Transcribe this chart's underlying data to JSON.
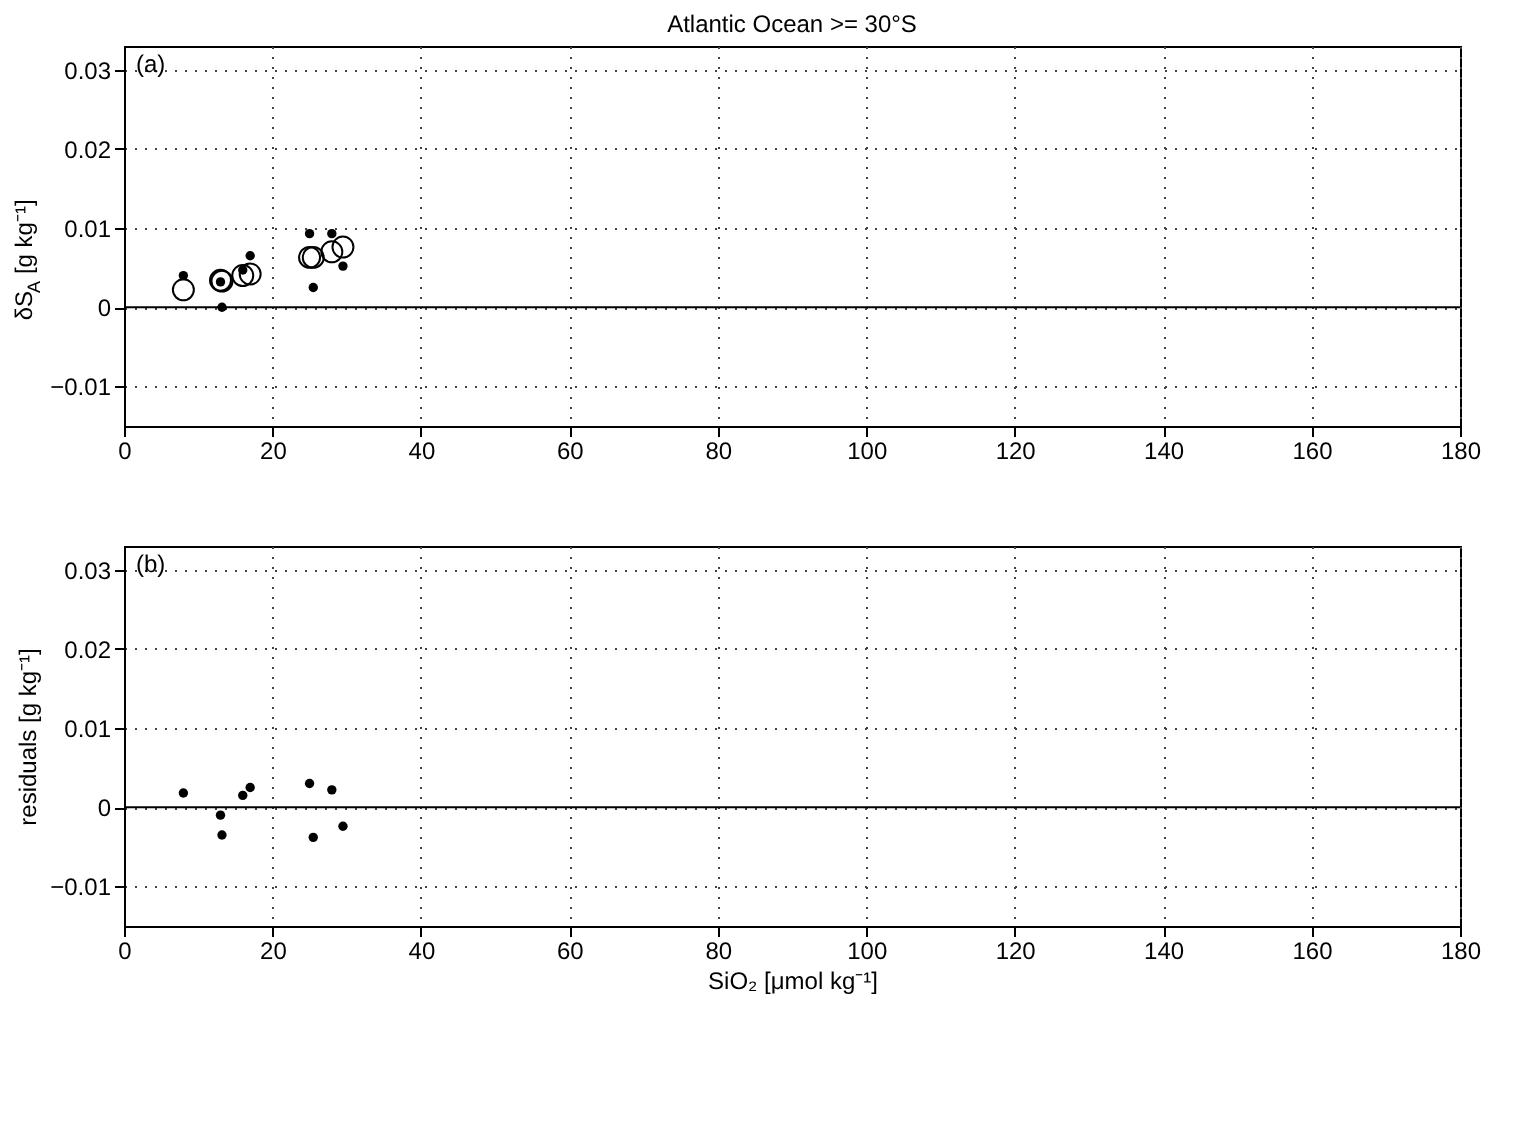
{
  "chart_data": [
    {
      "type": "scatter",
      "title": "Atlantic Ocean >= 30°S",
      "ylabel": "δS$_{A}$ [g kg⁻¹]",
      "annotations": [
        "(a)"
      ],
      "xlim": [
        0,
        180
      ],
      "xticks": [
        0,
        20,
        40,
        60,
        80,
        100,
        120,
        140,
        160,
        180
      ],
      "ylim": [
        -0.015,
        0.033
      ],
      "yticks": [
        -0.01,
        0,
        0.01,
        0.02,
        0.03
      ],
      "grid": true,
      "marker": "circle",
      "ref_lines": [
        {
          "axis": "y",
          "value": 0,
          "color": "#000000"
        }
      ],
      "series": [
        {
          "color": "#000000",
          "x": [
            8,
            13,
            13.2,
            16,
            17,
            25,
            25.5,
            28,
            29.5
          ],
          "values": [
            0.004,
            0.0032,
            0.0,
            0.0047,
            0.0065,
            0.0093,
            0.0025,
            0.0093,
            0.0052
          ]
        },
        {
          "color": "#000000",
          "x": [
            8,
            13,
            13.2,
            16,
            17,
            25,
            25.5,
            28,
            29.5
          ],
          "values": [
            0.0022,
            0.0034,
            0.0033,
            0.004,
            0.0042,
            0.0063,
            0.0063,
            0.007,
            0.0076
          ]
        }
      ]
    },
    {
      "type": "scatter",
      "xlabel": "SiO₂ [μmol kg⁻¹]",
      "ylabel": "residuals [g kg⁻¹]",
      "annotations": [
        "(b)"
      ],
      "xlim": [
        0,
        180
      ],
      "xticks": [
        0,
        20,
        40,
        60,
        80,
        100,
        120,
        140,
        160,
        180
      ],
      "ylim": [
        -0.015,
        0.033
      ],
      "yticks": [
        -0.01,
        0,
        0.01,
        0.02,
        0.03
      ],
      "grid": true,
      "marker": "circle",
      "ref_lines": [
        {
          "axis": "y",
          "value": 0,
          "color": "#000000"
        }
      ],
      "series": [
        {
          "color": "#000000",
          "x": [
            8,
            13,
            13.2,
            16,
            17,
            25,
            25.5,
            28,
            29.5
          ],
          "values": [
            0.0018,
            -0.001,
            -0.0035,
            0.0015,
            0.0025,
            0.003,
            -0.0038,
            0.0022,
            -0.0024
          ]
        }
      ]
    }
  ]
}
